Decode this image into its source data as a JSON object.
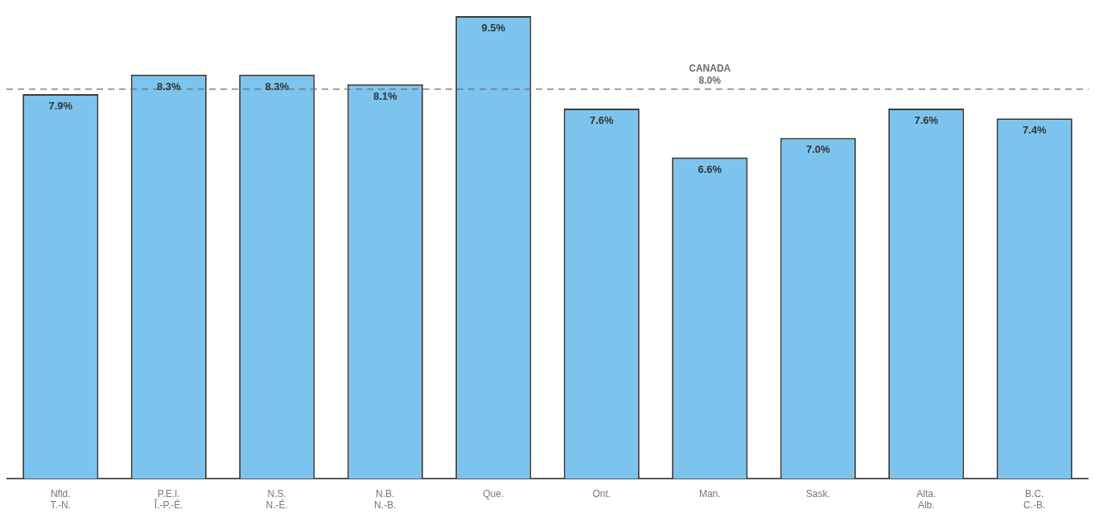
{
  "chart_data": {
    "type": "bar",
    "categories": [
      "Nfld.\nT.-N.",
      "P.E.I.\nÎ.-P.-É.",
      "N.S.\nN.-É.",
      "N.B.\nN.-B.",
      "Que.",
      "Ont.",
      "Man.",
      "Sask.",
      "Alta.\nAlb.",
      "B.C.\nC.-B."
    ],
    "values": [
      7.9,
      8.3,
      8.3,
      8.1,
      9.5,
      7.6,
      6.6,
      7.0,
      7.6,
      7.4
    ],
    "value_labels": [
      "7.9%",
      "8.3%",
      "8.3%",
      "8.1%",
      "9.5%",
      "7.6%",
      "6.6%",
      "7.0%",
      "7.6%",
      "7.4%"
    ],
    "color": "#7cc4ee",
    "ylim": [
      0,
      9.6
    ],
    "tick_labels": "x",
    "grid": false,
    "legend": false,
    "ref_lines": [
      {
        "axis": "y",
        "value": 8.0,
        "label": "CANADA\n8.0%",
        "color": "#6a6a6a",
        "line_style": "dashed"
      }
    ]
  }
}
